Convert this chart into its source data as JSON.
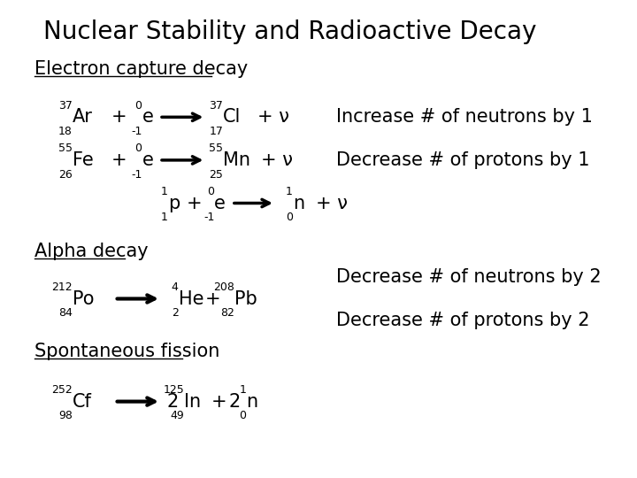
{
  "title": "Nuclear Stability and Radioactive Decay",
  "bg_color": "#ffffff",
  "title_fontsize": 20,
  "body_fontsize": 15,
  "small_fontsize": 9,
  "section1": "Electron capture decay",
  "section2": "Alpha decay",
  "section3": "Spontaneous fission"
}
